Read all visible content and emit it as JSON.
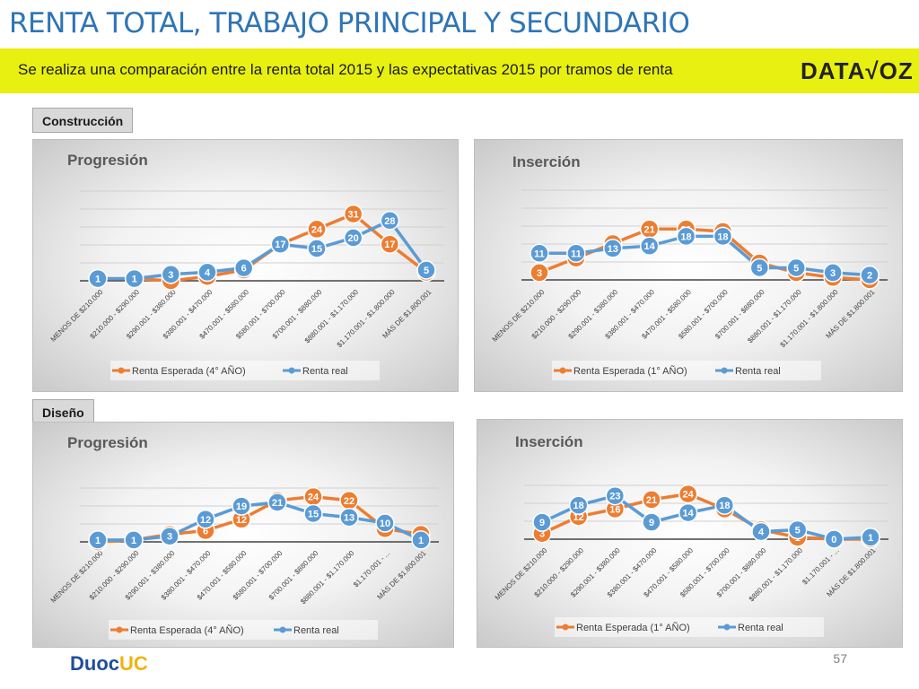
{
  "page": {
    "title": "RENTA TOTAL, TRABAJO PRINCIPAL Y SECUNDARIO",
    "banner": "Se realiza una comparación entre la renta total 2015 y las expectativas 2015 por tramos de renta",
    "logo": "DATA√OZ",
    "page_number": "57",
    "footer_logo_a": "Duoc",
    "footer_logo_b": "UC"
  },
  "sections": [
    "Construcción",
    "Diseño"
  ],
  "colors": {
    "expected": "#ed7d31",
    "real": "#5b9bd5",
    "title_blue": "#2e75b6",
    "banner": "#e8f011"
  },
  "chart_data": [
    {
      "type": "line",
      "title": "Progresión",
      "categories": [
        "MENOS DE $210.000",
        "$210.000 - $290.000",
        "$290.001 - $380.000",
        "$380.001 - $470.000",
        "$470.001 - $580.000",
        "$580.001 - $700.000",
        "$700.001 - $880.000",
        "$880.001 - $1.170.000",
        "$1.170.001 - $1.800.000",
        "MÁS DE $1.800.001"
      ],
      "series": [
        {
          "name": "Renta Esperada (4° AÑO)",
          "values": [
            1,
            1,
            0,
            2,
            5,
            17,
            24,
            31,
            17,
            4
          ]
        },
        {
          "name": "Renta real",
          "values": [
            1,
            1,
            3,
            4,
            6,
            17,
            15,
            20,
            28,
            5
          ]
        }
      ],
      "legend": "bottom"
    },
    {
      "type": "line",
      "title": "Inserción",
      "categories": [
        "MENOS DE $210.000",
        "$210.000 - $290.000",
        "$290.001 - $380.000",
        "$380.001 - $470.000",
        "$470.001 - $580.000",
        "$580.001 - $700.000",
        "$700.001 - $880.000",
        "$880.001 - $1.170.000",
        "$1.170.001 - $1.800.000",
        "MÁS DE $1.800.001"
      ],
      "series": [
        {
          "name": "Renta Esperada (1° AÑO)",
          "values": [
            3,
            9,
            15,
            21,
            21,
            20,
            7,
            3,
            1,
            0
          ]
        },
        {
          "name": "Renta real",
          "values": [
            11,
            11,
            13,
            14,
            18,
            18,
            5,
            5,
            3,
            2
          ]
        }
      ],
      "legend": "bottom"
    },
    {
      "type": "line",
      "title": "Progresión",
      "categories": [
        "MENOS DE $210.000",
        "$210.000 - $290.000",
        "$290.001 - $380.000",
        "$380.001 - $470.000",
        "$470.001 - $580.000",
        "$580.001 - $700.000",
        "$700.001 - $880.000",
        "$880.001 - $1.170.000",
        "$1.170.001 - ...",
        "MÁS DE $1.800.001"
      ],
      "series": [
        {
          "name": "Renta Esperada (4° AÑO)",
          "values": [
            0,
            1,
            4,
            6,
            12,
            22,
            24,
            22,
            7,
            4
          ]
        },
        {
          "name": "Renta real",
          "values": [
            1,
            1,
            3,
            12,
            19,
            21,
            15,
            13,
            10,
            1
          ]
        }
      ],
      "legend": "bottom"
    },
    {
      "type": "line",
      "title": "Inserción",
      "categories": [
        "MENOS DE $210.000",
        "$210.000 - $290.000",
        "$290.001 - $380.000",
        "$380.001 - $470.000",
        "$470.001 - $580.000",
        "$580.001 - $700.000",
        "$700.001 - $880.000",
        "$880.001 - $1.170.000",
        "$1.170.001 - ...",
        "MÁS DE $1.800.001"
      ],
      "series": [
        {
          "name": "Renta Esperada (1° AÑO)",
          "values": [
            3,
            12,
            16,
            21,
            24,
            16,
            5,
            1,
            0,
            0
          ]
        },
        {
          "name": "Renta real",
          "values": [
            9,
            18,
            23,
            9,
            14,
            18,
            4,
            5,
            0,
            1
          ]
        }
      ],
      "legend": "bottom"
    }
  ]
}
